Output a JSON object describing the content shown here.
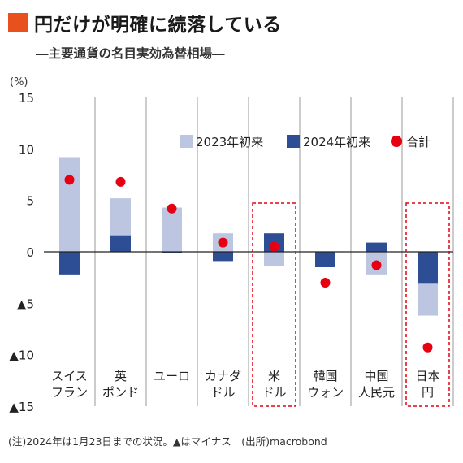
{
  "header": {
    "title": "円だけが明確に続落している",
    "subtitle": "―主要通貨の名目実効為替相場―"
  },
  "unit_label": "(%)",
  "note": "(注)2024年は1月23日までの状況。▲はマイナス　(出所)macrobond",
  "colors": {
    "accent": "#e8501e",
    "series_2023": "#bcc6e0",
    "series_2024": "#2d4e94",
    "total": "#e60012",
    "highlight_box": "#e60012",
    "grid": "#999999"
  },
  "chart_data": {
    "type": "bar",
    "stacking": "separate-from-zero",
    "ylim": [
      -15,
      15
    ],
    "yticks": [
      15,
      10,
      5,
      0,
      -5,
      -10,
      -15
    ],
    "ytick_labels": [
      "15",
      "10",
      "5",
      "0",
      "▲5",
      "▲10",
      "▲15"
    ],
    "categories": [
      {
        "lines": [
          "スイス",
          "フラン"
        ]
      },
      {
        "lines": [
          "英",
          "ポンド"
        ]
      },
      {
        "lines": [
          "ユーロ"
        ]
      },
      {
        "lines": [
          "カナダ",
          "ドル"
        ]
      },
      {
        "lines": [
          "米",
          "ドル"
        ]
      },
      {
        "lines": [
          "韓国",
          "ウォン"
        ]
      },
      {
        "lines": [
          "中国",
          "人民元"
        ]
      },
      {
        "lines": [
          "日本",
          "円"
        ]
      }
    ],
    "series": [
      {
        "name": "2023年初来",
        "color": "#bcc6e0",
        "values": [
          9.2,
          5.2,
          4.3,
          1.8,
          -1.4,
          -1.5,
          -2.2,
          -6.2
        ]
      },
      {
        "name": "2024年初来",
        "color": "#2d4e94",
        "values": [
          -2.2,
          1.6,
          -0.1,
          -0.9,
          1.8,
          -1.5,
          0.9,
          -3.1
        ]
      },
      {
        "name": "合計",
        "type": "point",
        "color": "#e60012",
        "values": [
          7.0,
          6.8,
          4.2,
          0.9,
          0.5,
          -3.0,
          -1.3,
          -9.3
        ]
      }
    ],
    "highlighted_categories": [
      4,
      7
    ],
    "legend_position": "top-right",
    "grid": "vertical-separators"
  }
}
